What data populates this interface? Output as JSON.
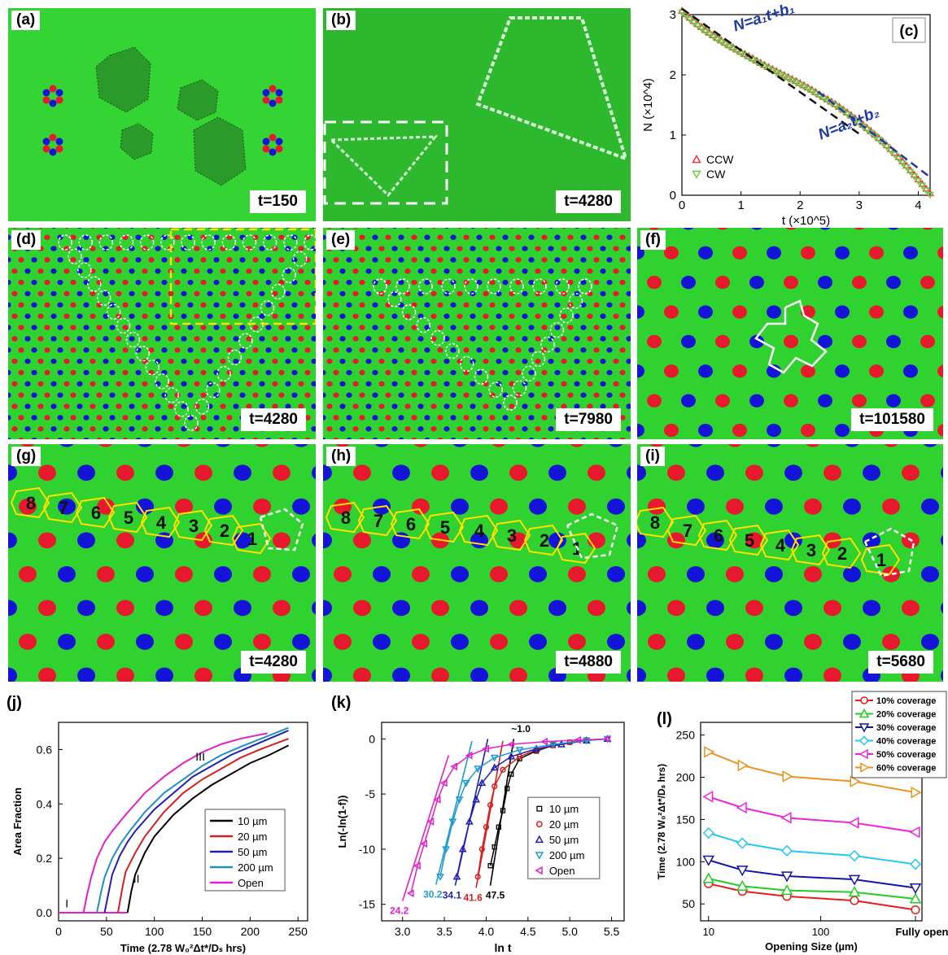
{
  "panels": {
    "a": {
      "label": "(a)",
      "time": "t=150"
    },
    "b": {
      "label": "(b)",
      "time": "t=4280"
    },
    "d": {
      "label": "(d)",
      "time": "t=4280"
    },
    "e": {
      "label": "(e)",
      "time": "t=7980"
    },
    "f": {
      "label": "(f)",
      "time": "t=101580"
    },
    "g": {
      "label": "(g)",
      "time": "t=4280",
      "numbers": [
        "8",
        "7",
        "6",
        "5",
        "4",
        "3",
        "2",
        "1"
      ]
    },
    "h": {
      "label": "(h)",
      "time": "t=4880",
      "numbers": [
        "8",
        "7",
        "6",
        "5",
        "4",
        "3",
        "2",
        "1"
      ]
    },
    "i": {
      "label": "(i)",
      "time": "t=5680",
      "numbers": [
        "8",
        "7",
        "6",
        "5",
        "4",
        "3",
        "2",
        "1"
      ]
    }
  },
  "colors": {
    "background_green": "#2fd22f",
    "red": "#e8192c",
    "blue": "#1414d8",
    "white_outline": "#ffffff",
    "yellow_outline": "#ffe000"
  },
  "chart_data": [
    {
      "id": "c",
      "panel_label": "(c)",
      "type": "scatter",
      "xlabel": "t (×10^5)",
      "ylabel": "N (×10^4)",
      "xlim": [
        0,
        4.2
      ],
      "ylim": [
        0,
        3
      ],
      "xticks": [
        "0",
        "1",
        "2",
        "3",
        "4"
      ],
      "yticks": [
        "0",
        "1",
        "2",
        "3"
      ],
      "annotations": [
        "N=a₁t+b₁",
        "N=a₂t+b₂"
      ],
      "series": [
        {
          "name": "CCW",
          "marker": "triangle-up",
          "color": "#e8383d",
          "x": [
            0,
            0.2,
            0.4,
            0.6,
            0.8,
            1.0,
            1.2,
            1.4,
            1.6,
            1.8,
            2.0,
            2.2,
            2.4,
            2.6,
            2.8,
            3.0,
            3.2,
            3.4,
            3.6,
            3.8,
            4.0,
            4.2
          ],
          "y": [
            3.05,
            2.88,
            2.73,
            2.6,
            2.48,
            2.37,
            2.26,
            2.15,
            2.05,
            1.95,
            1.85,
            1.74,
            1.62,
            1.5,
            1.36,
            1.21,
            1.05,
            0.88,
            0.69,
            0.48,
            0.25,
            0.02
          ]
        },
        {
          "name": "CW",
          "marker": "triangle-down",
          "color": "#6fcf4a",
          "x": [
            0,
            0.2,
            0.4,
            0.6,
            0.8,
            1.0,
            1.2,
            1.4,
            1.6,
            1.8,
            2.0,
            2.2,
            2.4,
            2.6,
            2.8,
            3.0,
            3.2,
            3.4,
            3.6,
            3.8,
            4.0,
            4.2
          ],
          "y": [
            3.05,
            2.88,
            2.73,
            2.6,
            2.48,
            2.37,
            2.26,
            2.15,
            2.05,
            1.95,
            1.85,
            1.74,
            1.62,
            1.5,
            1.36,
            1.21,
            1.05,
            0.88,
            0.69,
            0.48,
            0.25,
            0.02
          ]
        }
      ],
      "fits": [
        {
          "name": "N=a₁t+b₁",
          "color": "#111111",
          "x": [
            0,
            3.0
          ],
          "y": [
            3.1,
            1.02
          ]
        },
        {
          "name": "N=a₂t+b₂",
          "color": "#1e3aa8",
          "x": [
            2.3,
            4.2
          ],
          "y": [
            1.72,
            0.3
          ]
        }
      ],
      "legend_placement": "bottom-left"
    },
    {
      "id": "j",
      "panel_label": "(j)",
      "type": "line",
      "xlabel": "Time (2.78 W₀²Δt*/Dₛ hrs)",
      "ylabel": "Area Fraction",
      "xlim": [
        0,
        260
      ],
      "ylim": [
        -0.03,
        0.7
      ],
      "xticks": [
        "0",
        "50",
        "100",
        "150",
        "200",
        "250"
      ],
      "yticks": [
        "0.0",
        "0.2",
        "0.4",
        "0.6"
      ],
      "annotations": [
        "I",
        "II",
        "III"
      ],
      "series": [
        {
          "name": "10 µm",
          "color": "#000000",
          "x": [
            72,
            76,
            80,
            90,
            100,
            120,
            140,
            160,
            180,
            200,
            220,
            240
          ],
          "y": [
            0,
            0.08,
            0.14,
            0.22,
            0.28,
            0.36,
            0.42,
            0.47,
            0.51,
            0.55,
            0.58,
            0.615
          ]
        },
        {
          "name": "20 µm",
          "color": "#d62020",
          "x": [
            62,
            66,
            70,
            80,
            90,
            110,
            130,
            150,
            170,
            190,
            210,
            240
          ],
          "y": [
            0,
            0.08,
            0.15,
            0.22,
            0.28,
            0.37,
            0.44,
            0.49,
            0.53,
            0.57,
            0.6,
            0.64
          ]
        },
        {
          "name": "50 µm",
          "color": "#1f1fb4",
          "x": [
            48,
            52,
            56,
            64,
            72,
            80,
            100,
            120,
            140,
            160,
            180,
            200,
            240
          ],
          "y": [
            0,
            0.07,
            0.14,
            0.21,
            0.26,
            0.3,
            0.38,
            0.44,
            0.5,
            0.54,
            0.58,
            0.61,
            0.67
          ]
        },
        {
          "name": "200 µm",
          "color": "#1f8fc4",
          "x": [
            40,
            44,
            48,
            56,
            64,
            72,
            90,
            110,
            130,
            150,
            170,
            190,
            240
          ],
          "y": [
            0,
            0.07,
            0.13,
            0.2,
            0.25,
            0.29,
            0.37,
            0.44,
            0.49,
            0.54,
            0.58,
            0.61,
            0.68
          ]
        },
        {
          "name": "Open",
          "color": "#e020c8",
          "x": [
            26,
            30,
            34,
            40,
            48,
            56,
            70,
            90,
            110,
            130,
            150,
            170,
            190,
            218
          ],
          "y": [
            0,
            0.07,
            0.13,
            0.2,
            0.26,
            0.3,
            0.36,
            0.44,
            0.5,
            0.55,
            0.59,
            0.62,
            0.64,
            0.66
          ]
        }
      ],
      "legend_placement": "bottom-right"
    },
    {
      "id": "k",
      "panel_label": "(k)",
      "type": "scatter",
      "xlabel": "ln t",
      "ylabel": "Ln(-ln(1-f))",
      "xlim": [
        2.75,
        5.65
      ],
      "ylim": [
        -16.5,
        1.5
      ],
      "xticks": [
        "3.0",
        "3.5",
        "4.0",
        "4.5",
        "5.0",
        "5.5"
      ],
      "yticks": [
        "-15",
        "-10",
        "-5",
        "0"
      ],
      "annotations": [
        "~1.0",
        "24.2",
        "30.2",
        "34.1",
        "41.6",
        "47.5"
      ],
      "series": [
        {
          "name": "10 µm",
          "marker": "square",
          "color": "#000000",
          "x": [
            4.05,
            4.1,
            4.15,
            4.2,
            4.25,
            4.3,
            4.4,
            4.6,
            4.8,
            5.0,
            5.2,
            5.45
          ],
          "y": [
            -11.5,
            -9.8,
            -8,
            -6.5,
            -4.5,
            -3.2,
            -1.8,
            -1.1,
            -0.6,
            -0.3,
            -0.1,
            0
          ]
        },
        {
          "name": "20 µm",
          "marker": "circle",
          "color": "#d62020",
          "x": [
            3.9,
            3.95,
            4.0,
            4.05,
            4.1,
            4.2,
            4.4,
            4.6,
            4.8,
            5.0,
            5.2,
            5.45
          ],
          "y": [
            -12.5,
            -10,
            -8,
            -6,
            -4.3,
            -2.8,
            -1.6,
            -1,
            -0.6,
            -0.3,
            -0.1,
            0
          ]
        },
        {
          "name": "50 µm",
          "marker": "triangle-up",
          "color": "#1f1fb4",
          "x": [
            3.65,
            3.72,
            3.8,
            3.88,
            3.95,
            4.1,
            4.3,
            4.6,
            4.9,
            5.2,
            5.45
          ],
          "y": [
            -12.5,
            -10,
            -7.5,
            -5.5,
            -4,
            -2.6,
            -1.6,
            -0.9,
            -0.5,
            -0.15,
            0
          ]
        },
        {
          "name": "200 µm",
          "marker": "triangle-down",
          "color": "#1f9ad0",
          "x": [
            3.45,
            3.52,
            3.6,
            3.68,
            3.76,
            3.9,
            4.1,
            4.4,
            4.8,
            5.2,
            5.45
          ],
          "y": [
            -12.5,
            -10,
            -7.5,
            -5.5,
            -4,
            -2.7,
            -1.7,
            -1,
            -0.5,
            -0.15,
            0
          ]
        },
        {
          "name": "Open",
          "marker": "triangle-left",
          "color": "#e020c8",
          "x": [
            3.1,
            3.18,
            3.26,
            3.34,
            3.42,
            3.5,
            3.62,
            3.8,
            4.0,
            4.3,
            4.7,
            5.1,
            5.45
          ],
          "y": [
            -14,
            -11.5,
            -9.5,
            -7.5,
            -5.5,
            -4,
            -2.5,
            -1.5,
            -0.9,
            -0.5,
            -0.25,
            -0.1,
            0
          ]
        }
      ],
      "fit_slopes": [
        {
          "label": "24.2",
          "color": "#e020c8",
          "x": [
            3.0,
            3.55
          ],
          "y": [
            -14.7,
            -1.5
          ]
        },
        {
          "label": "30.2",
          "color": "#1f9ad0",
          "x": [
            3.4,
            3.83
          ],
          "y": [
            -13.2,
            -0.2
          ]
        },
        {
          "label": "34.1",
          "color": "#1f1fb4",
          "x": [
            3.63,
            4.02
          ],
          "y": [
            -13.3,
            0.0
          ]
        },
        {
          "label": "41.6",
          "color": "#d62020",
          "x": [
            3.88,
            4.2
          ],
          "y": [
            -13.5,
            -0.2
          ]
        },
        {
          "label": "47.5",
          "color": "#000000",
          "x": [
            4.05,
            4.33
          ],
          "y": [
            -13.3,
            0.0
          ]
        }
      ],
      "legend_placement": "right"
    },
    {
      "id": "l",
      "panel_label": "(l)",
      "type": "line",
      "xlabel": "Opening Size (µm)",
      "ylabel": "Time (2.78 W₀²Δt*/Dₛ hrs)",
      "xscale": "log",
      "xlim": [
        8.5,
        800
      ],
      "ylim": [
        30,
        265
      ],
      "xticks": [
        "10",
        "100",
        "Fully open"
      ],
      "yticks": [
        "50",
        "100",
        "150",
        "200",
        "250"
      ],
      "categories_x": [
        10,
        20,
        50,
        200,
        700
      ],
      "series": [
        {
          "name": "10% coverage",
          "marker": "circle",
          "color": "#e81c1c",
          "values": [
            74,
            65,
            59,
            54,
            43
          ]
        },
        {
          "name": "20% coverage",
          "marker": "triangle-up",
          "color": "#22cc22",
          "values": [
            80,
            71,
            66,
            64,
            56
          ]
        },
        {
          "name": "30% coverage",
          "marker": "triangle-down",
          "color": "#1414a8",
          "values": [
            102,
            90,
            83,
            79,
            69
          ]
        },
        {
          "name": "40% coverage",
          "marker": "diamond",
          "color": "#22c8ee",
          "values": [
            134,
            122,
            113,
            107,
            97
          ]
        },
        {
          "name": "50% coverage",
          "marker": "triangle-left",
          "color": "#ee22dd",
          "values": [
            177,
            164,
            152,
            146,
            135
          ]
        },
        {
          "name": "60% coverage",
          "marker": "triangle-right",
          "color": "#f0901c",
          "values": [
            230,
            214,
            201,
            195,
            182
          ]
        }
      ],
      "legend_placement": "top-right"
    }
  ]
}
